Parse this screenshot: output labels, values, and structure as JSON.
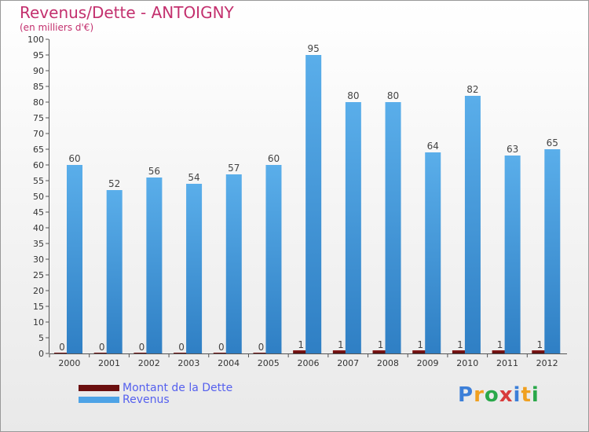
{
  "header": {
    "title": "Revenus/Dette - ANTOIGNY",
    "subtitle": "(en milliers d'€)"
  },
  "legend": {
    "items": [
      {
        "label": "Montant de la Dette",
        "color": "#6b0f0f"
      },
      {
        "label": "Revenus",
        "color": "#4da3e6"
      }
    ]
  },
  "logo": {
    "text": "Proxiti",
    "colors": [
      "#3c7fd8",
      "#f0a020",
      "#2aa84a",
      "#d83c3c",
      "#3c7fd8",
      "#f0a020",
      "#2aa84a"
    ]
  },
  "chart_data": {
    "type": "bar",
    "title": "Revenus/Dette - ANTOIGNY",
    "ylabel": "(en milliers d'€)",
    "categories": [
      "2000",
      "2001",
      "2002",
      "2003",
      "2004",
      "2005",
      "2006",
      "2007",
      "2008",
      "2009",
      "2010",
      "2011",
      "2012"
    ],
    "series": [
      {
        "name": "Montant de la Dette",
        "color": "#6b0f0f",
        "values": [
          0,
          0,
          0,
          0,
          0,
          0,
          1,
          1,
          1,
          1,
          1,
          1,
          1
        ]
      },
      {
        "name": "Revenus",
        "color": "#4da3e6",
        "values": [
          60,
          52,
          56,
          54,
          57,
          60,
          95,
          80,
          80,
          64,
          82,
          63,
          65
        ]
      }
    ],
    "yticks": [
      0,
      5,
      10,
      15,
      20,
      25,
      30,
      35,
      40,
      45,
      50,
      55,
      60,
      65,
      70,
      75,
      80,
      85,
      90,
      95,
      100
    ],
    "ylim": [
      0,
      100
    ],
    "grid": false,
    "legend_position": "bottom-left"
  }
}
